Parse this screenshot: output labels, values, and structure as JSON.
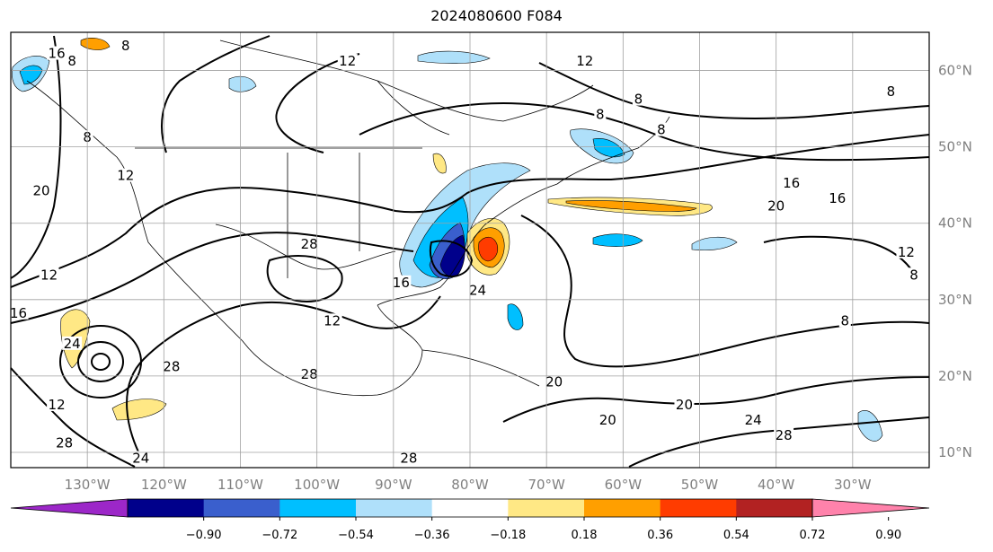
{
  "title": "2024080600 F084",
  "map": {
    "lon_labels": [
      "130°W",
      "120°W",
      "110°W",
      "100°W",
      "90°W",
      "80°W",
      "70°W",
      "60°W",
      "50°W",
      "40°W",
      "30°W"
    ],
    "lon_values": [
      -130,
      -120,
      -110,
      -100,
      -90,
      -80,
      -70,
      -60,
      -50,
      -40,
      -30
    ],
    "lat_labels": [
      "60°N",
      "50°N",
      "40°N",
      "30°N",
      "20°N",
      "10°N"
    ],
    "lat_values": [
      60,
      50,
      40,
      30,
      20,
      10
    ],
    "lon_range": [
      -140,
      -20
    ],
    "lat_range": [
      8,
      65
    ],
    "contour_labels": [
      {
        "text": "8",
        "lon": -125,
        "lat": 63
      },
      {
        "text": "8",
        "lon": -132,
        "lat": 61
      },
      {
        "text": "16",
        "lon": -134,
        "lat": 62
      },
      {
        "text": "12",
        "lon": -96,
        "lat": 61
      },
      {
        "text": "12",
        "lon": -65,
        "lat": 61
      },
      {
        "text": "8",
        "lon": -58,
        "lat": 56
      },
      {
        "text": "8",
        "lon": -25,
        "lat": 57
      },
      {
        "text": "8",
        "lon": -63,
        "lat": 54
      },
      {
        "text": "8",
        "lon": -55,
        "lat": 52
      },
      {
        "text": "8",
        "lon": -130,
        "lat": 51
      },
      {
        "text": "12",
        "lon": -125,
        "lat": 46
      },
      {
        "text": "20",
        "lon": -136,
        "lat": 44
      },
      {
        "text": "16",
        "lon": -38,
        "lat": 45
      },
      {
        "text": "20",
        "lon": -40,
        "lat": 42
      },
      {
        "text": "16",
        "lon": -32,
        "lat": 43
      },
      {
        "text": "12",
        "lon": -23,
        "lat": 36
      },
      {
        "text": "8",
        "lon": -22,
        "lat": 33
      },
      {
        "text": "28",
        "lon": -101,
        "lat": 37
      },
      {
        "text": "12",
        "lon": -135,
        "lat": 33
      },
      {
        "text": "16",
        "lon": -89,
        "lat": 32
      },
      {
        "text": "24",
        "lon": -79,
        "lat": 31
      },
      {
        "text": "16",
        "lon": -139,
        "lat": 28
      },
      {
        "text": "12",
        "lon": -98,
        "lat": 27
      },
      {
        "text": "8",
        "lon": -31,
        "lat": 27
      },
      {
        "text": "24",
        "lon": -132,
        "lat": 24
      },
      {
        "text": "28",
        "lon": -119,
        "lat": 21
      },
      {
        "text": "28",
        "lon": -101,
        "lat": 20
      },
      {
        "text": "20",
        "lon": -69,
        "lat": 19
      },
      {
        "text": "12",
        "lon": -134,
        "lat": 16
      },
      {
        "text": "20",
        "lon": -52,
        "lat": 16
      },
      {
        "text": "20",
        "lon": -62,
        "lat": 14
      },
      {
        "text": "24",
        "lon": -43,
        "lat": 14
      },
      {
        "text": "28",
        "lon": -39,
        "lat": 12
      },
      {
        "text": "28",
        "lon": -133,
        "lat": 11
      },
      {
        "text": "24",
        "lon": -123,
        "lat": 9
      },
      {
        "text": "28",
        "lon": -88,
        "lat": 9
      }
    ]
  },
  "colorbar": {
    "labels": [
      "−0.90",
      "−0.72",
      "−0.54",
      "−0.36",
      "−0.18",
      "0.18",
      "0.36",
      "0.54",
      "0.72",
      "0.90"
    ],
    "colors": [
      "#9c27c8",
      "#00008b",
      "#3a5fcd",
      "#00bfff",
      "#afe0fa",
      "#ffffff",
      "#ffe885",
      "#ff9f00",
      "#ff3c00",
      "#b22222",
      "#ff82ab"
    ]
  }
}
